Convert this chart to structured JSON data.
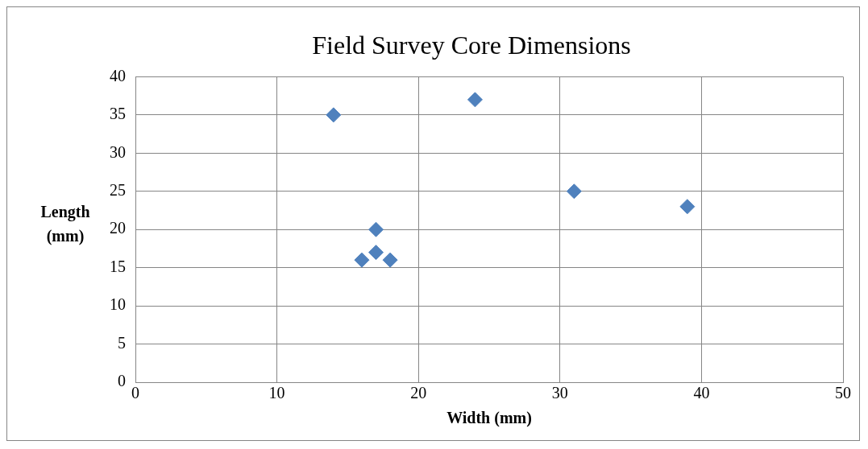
{
  "chart_data": {
    "type": "scatter",
    "title": "Field Survey Core Dimensions",
    "xlabel": "Width (mm)",
    "ylabel": "Length (mm)",
    "x": [
      14,
      24,
      31,
      39,
      17,
      17,
      16,
      18
    ],
    "values": [
      35,
      37,
      25,
      23,
      20,
      17,
      16,
      16
    ],
    "color": "#4f81bd",
    "marker": "diamond",
    "grid": true,
    "legend": false,
    "xlim": [
      0,
      50
    ],
    "xticks": [
      0,
      10,
      20,
      30,
      40,
      50
    ],
    "ylim": [
      0,
      40
    ],
    "yticks": [
      0,
      5,
      10,
      15,
      20,
      25,
      30,
      35,
      40
    ]
  }
}
